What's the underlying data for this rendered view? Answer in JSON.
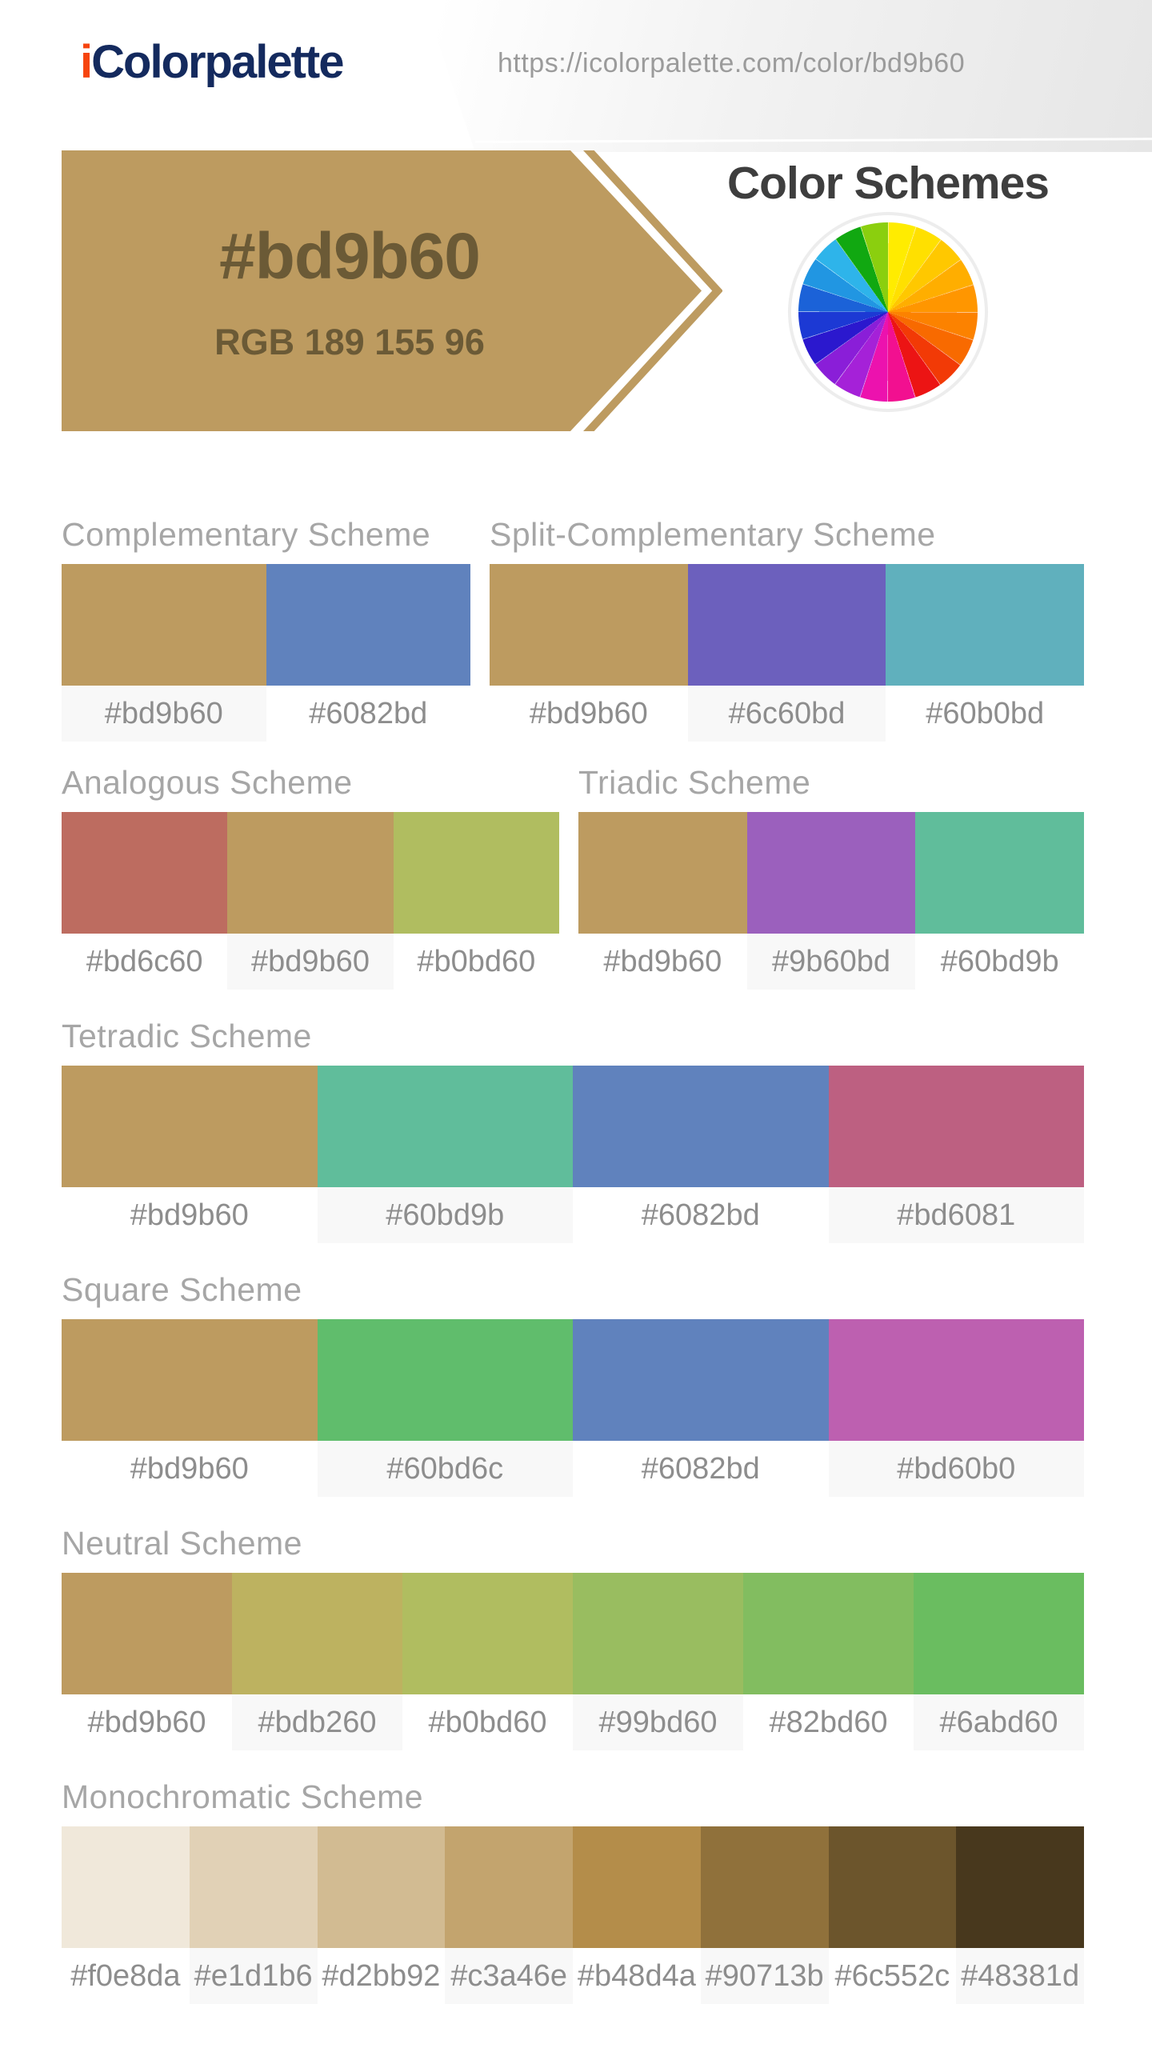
{
  "header": {
    "logo": {
      "accent": "i",
      "rest": "Colorpalette",
      "accent_color": "#f6440e",
      "navy_color": "#142a5e"
    },
    "url": "https://icolorpalette.com/color/bd9b60"
  },
  "banner": {
    "hex": "#bd9b60",
    "rgb_label": "RGB 189 155 96",
    "arrow_color": "#bd9b60",
    "text_color": "#6b5a36"
  },
  "color_schemes": {
    "title": "Color Schemes",
    "wheel_icon": "color-wheel",
    "wheel_colors": [
      "#ffec00",
      "#ffe000",
      "#ffc800",
      "#ffae00",
      "#ff9600",
      "#fc8200",
      "#f86a00",
      "#f23a06",
      "#ec1414",
      "#f21090",
      "#ec12ae",
      "#a521d8",
      "#8a1ed8",
      "#2b18ce",
      "#1c39d4",
      "#1b62d8",
      "#2196e2",
      "#2eb4ea",
      "#11a811",
      "#8bcf0e"
    ]
  },
  "sections": [
    {
      "title": "Complementary Scheme",
      "swatches": [
        {
          "hex": "#bd9b60",
          "label_shaded": true
        },
        {
          "hex": "#6082bd",
          "label_shaded": false
        }
      ]
    },
    {
      "title": "Split-Complementary Scheme",
      "swatches": [
        {
          "hex": "#bd9b60",
          "label_shaded": false
        },
        {
          "hex": "#6c60bd",
          "label_shaded": true
        },
        {
          "hex": "#60b0bd",
          "label_shaded": false
        }
      ]
    },
    {
      "title": "Analogous Scheme",
      "swatches": [
        {
          "hex": "#bd6c60",
          "label_shaded": false
        },
        {
          "hex": "#bd9b60",
          "label_shaded": true
        },
        {
          "hex": "#b0bd60",
          "label_shaded": false
        }
      ]
    },
    {
      "title": "Triadic Scheme",
      "swatches": [
        {
          "hex": "#bd9b60",
          "label_shaded": false
        },
        {
          "hex": "#9b60bd",
          "label_shaded": true
        },
        {
          "hex": "#60bd9b",
          "label_shaded": false
        }
      ]
    },
    {
      "title": "Tetradic Scheme",
      "swatches": [
        {
          "hex": "#bd9b60",
          "label_shaded": false
        },
        {
          "hex": "#60bd9b",
          "label_shaded": true
        },
        {
          "hex": "#6082bd",
          "label_shaded": false
        },
        {
          "hex": "#bd6081",
          "label_shaded": true
        }
      ]
    },
    {
      "title": "Square Scheme",
      "swatches": [
        {
          "hex": "#bd9b60",
          "label_shaded": false
        },
        {
          "hex": "#60bd6c",
          "label_shaded": true
        },
        {
          "hex": "#6082bd",
          "label_shaded": false
        },
        {
          "hex": "#bd60b0",
          "label_shaded": true
        }
      ]
    },
    {
      "title": "Neutral Scheme",
      "swatches": [
        {
          "hex": "#bd9b60",
          "label_shaded": false
        },
        {
          "hex": "#bdb260",
          "label_shaded": true
        },
        {
          "hex": "#b0bd60",
          "label_shaded": false
        },
        {
          "hex": "#99bd60",
          "label_shaded": true
        },
        {
          "hex": "#82bd60",
          "label_shaded": false
        },
        {
          "hex": "#6abd60",
          "label_shaded": true
        }
      ]
    },
    {
      "title": "Monochromatic Scheme",
      "swatches": [
        {
          "hex": "#f0e8da",
          "label_shaded": false
        },
        {
          "hex": "#e1d1b6",
          "label_shaded": true
        },
        {
          "hex": "#d2bb92",
          "label_shaded": false
        },
        {
          "hex": "#c3a46e",
          "label_shaded": true
        },
        {
          "hex": "#b48d4a",
          "label_shaded": false
        },
        {
          "hex": "#90713b",
          "label_shaded": true
        },
        {
          "hex": "#6c552c",
          "label_shaded": false
        },
        {
          "hex": "#48381d",
          "label_shaded": true
        }
      ]
    }
  ]
}
